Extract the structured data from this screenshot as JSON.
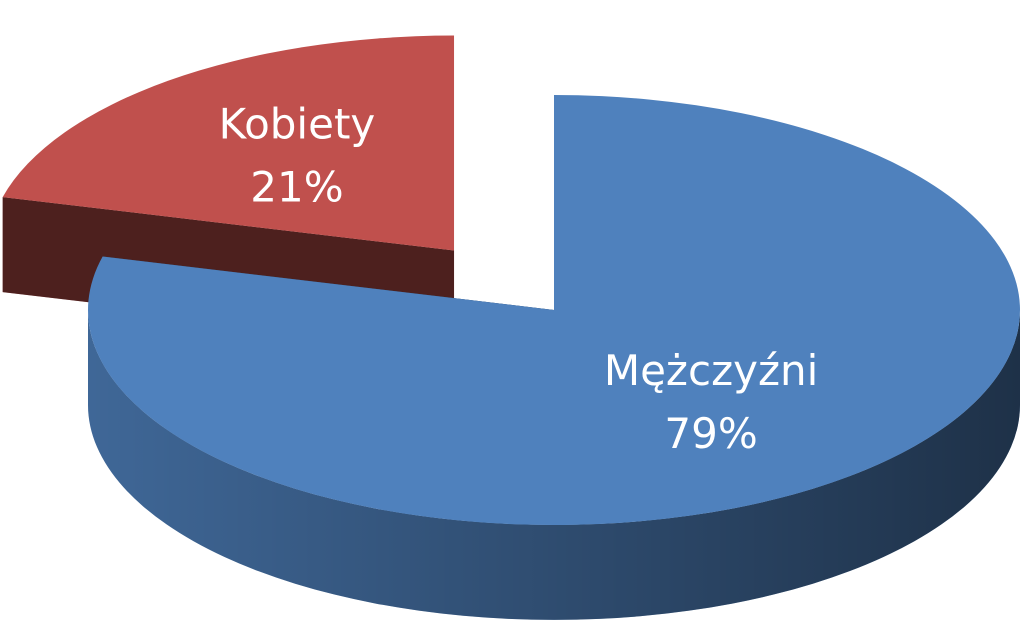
{
  "chart_data": {
    "type": "pie3d",
    "categories": [
      "Mężczyźni",
      "Kobiety"
    ],
    "values": [
      79,
      21
    ],
    "value_labels": [
      "79%",
      "21%"
    ],
    "colors": [
      "#4f81bd",
      "#c0504d"
    ],
    "exploded": [
      "Kobiety"
    ]
  }
}
